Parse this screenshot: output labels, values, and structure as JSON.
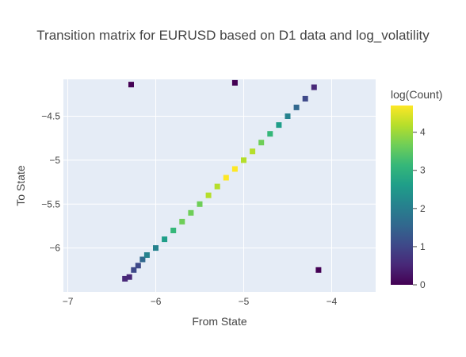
{
  "chart_data": {
    "type": "heatmap",
    "title": "Transition matrix for EURUSD based on D1 data and log_volatility",
    "xlabel": "From State",
    "ylabel": "To State",
    "xlim": [
      -7.05,
      -3.5
    ],
    "ylim": [
      -6.5,
      -4.08
    ],
    "x_ticks": [
      -7,
      -6,
      -5,
      -4
    ],
    "x_tick_labels": [
      "−7",
      "−6",
      "−5",
      "−4"
    ],
    "y_ticks": [
      -6,
      -5.5,
      -5,
      -4.5
    ],
    "y_tick_labels": [
      "−6",
      "−5.5",
      "−5",
      "−4.5"
    ],
    "grid": true,
    "colorbar": {
      "title": "log(Count)",
      "range": [
        0,
        4.7
      ],
      "ticks": [
        0,
        1,
        2,
        3,
        4
      ],
      "tick_labels": [
        "0",
        "1",
        "2",
        "3",
        "4"
      ],
      "colorscale": "Viridis"
    },
    "cells": [
      [
        -6.35,
        -6.35,
        0.7
      ],
      [
        -6.3,
        -6.33,
        0.5
      ],
      [
        -6.25,
        -6.25,
        1.1
      ],
      [
        -6.2,
        -6.2,
        1.3
      ],
      [
        -6.15,
        -6.13,
        1.6
      ],
      [
        -6.1,
        -6.08,
        1.9
      ],
      [
        -6.0,
        -6.0,
        2.3
      ],
      [
        -5.9,
        -5.9,
        2.7
      ],
      [
        -5.8,
        -5.8,
        3.0
      ],
      [
        -5.7,
        -5.7,
        3.4
      ],
      [
        -5.6,
        -5.6,
        3.6
      ],
      [
        -5.5,
        -5.5,
        3.9
      ],
      [
        -5.4,
        -5.4,
        4.1
      ],
      [
        -5.3,
        -5.3,
        4.3
      ],
      [
        -5.2,
        -5.2,
        4.5
      ],
      [
        -5.1,
        -5.1,
        4.5
      ],
      [
        -5.0,
        -5.0,
        4.3
      ],
      [
        -4.9,
        -4.9,
        4.0
      ],
      [
        -4.8,
        -4.8,
        3.6
      ],
      [
        -4.7,
        -4.7,
        3.2
      ],
      [
        -4.6,
        -4.6,
        2.8
      ],
      [
        -4.5,
        -4.5,
        2.2
      ],
      [
        -4.4,
        -4.4,
        1.6
      ],
      [
        -4.3,
        -4.3,
        1.2
      ],
      [
        -4.2,
        -4.17,
        0.6
      ],
      [
        -6.28,
        -4.14,
        0.0
      ],
      [
        -4.15,
        -6.25,
        0.0
      ],
      [
        -5.1,
        -4.12,
        0.0
      ]
    ]
  }
}
